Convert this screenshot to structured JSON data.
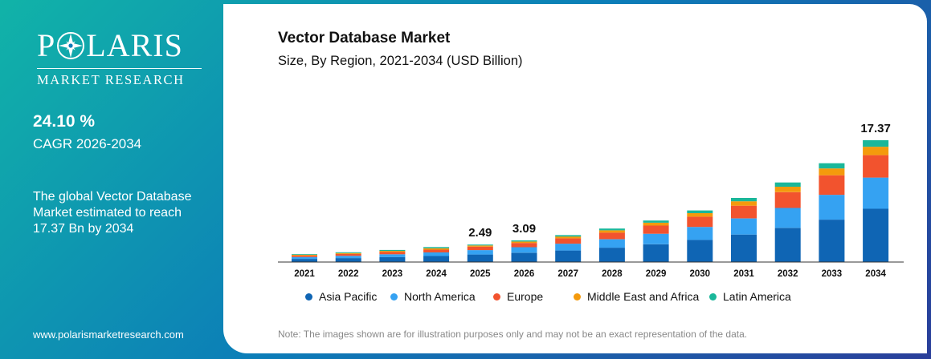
{
  "brand": {
    "name": "POLARIS",
    "sub": "MARKET RESEARCH",
    "website": "www.polarismarketresearch.com"
  },
  "side": {
    "cagr_value": "24.10 %",
    "cagr_label": "CAGR 2026-2034",
    "summary": "The global Vector Database Market estimated to reach 17.37 Bn by 2034"
  },
  "note": "Note: The images shown are for illustration purposes only and may not be an exact representation of the data.",
  "colors": {
    "background_gradient": [
      "#11b3a8",
      "#0c7db8",
      "#2a3e9a"
    ],
    "series": [
      "#0f65b4",
      "#35a2f2",
      "#f2532e",
      "#f49a0c",
      "#1ab79a"
    ]
  },
  "chart_data": {
    "type": "bar",
    "stacked": true,
    "title": "Vector Database Market",
    "subtitle": "Size, By Region, 2021-2034 (USD Billion)",
    "legend_position": "bottom",
    "grid": false,
    "categories": [
      "2021",
      "2022",
      "2023",
      "2024",
      "2025",
      "2026",
      "2027",
      "2028",
      "2029",
      "2030",
      "2031",
      "2032",
      "2033",
      "2034"
    ],
    "series": [
      {
        "name": "Asia Pacific",
        "color": "#0f65b4",
        "values": [
          0.45,
          0.56,
          0.7,
          0.86,
          1.07,
          1.33,
          1.65,
          2.05,
          2.54,
          3.16,
          3.92,
          4.87,
          6.05,
          7.6
        ]
      },
      {
        "name": "North America",
        "color": "#35a2f2",
        "values": [
          0.27,
          0.33,
          0.41,
          0.51,
          0.63,
          0.78,
          0.97,
          1.2,
          1.49,
          1.85,
          2.3,
          2.85,
          3.54,
          4.45
        ]
      },
      {
        "name": "Europe",
        "color": "#f2532e",
        "values": [
          0.21,
          0.26,
          0.32,
          0.4,
          0.49,
          0.61,
          0.76,
          0.95,
          1.17,
          1.46,
          1.81,
          2.25,
          2.79,
          3.2
        ]
      },
      {
        "name": "Middle East and Africa",
        "color": "#f49a0c",
        "values": [
          0.11,
          0.13,
          0.16,
          0.2,
          0.17,
          0.21,
          0.26,
          0.33,
          0.41,
          0.5,
          0.63,
          0.78,
          0.97,
          1.2
        ]
      },
      {
        "name": "Latin America",
        "color": "#1ab79a",
        "values": [
          0.09,
          0.11,
          0.14,
          0.17,
          0.13,
          0.16,
          0.2,
          0.25,
          0.31,
          0.39,
          0.48,
          0.6,
          0.74,
          0.92
        ]
      }
    ],
    "data_labels": [
      {
        "category": "2025",
        "text": "2.49"
      },
      {
        "category": "2026",
        "text": "3.09"
      },
      {
        "category": "2034",
        "text": "17.37"
      }
    ],
    "ylim": [
      0,
      17.37
    ]
  }
}
